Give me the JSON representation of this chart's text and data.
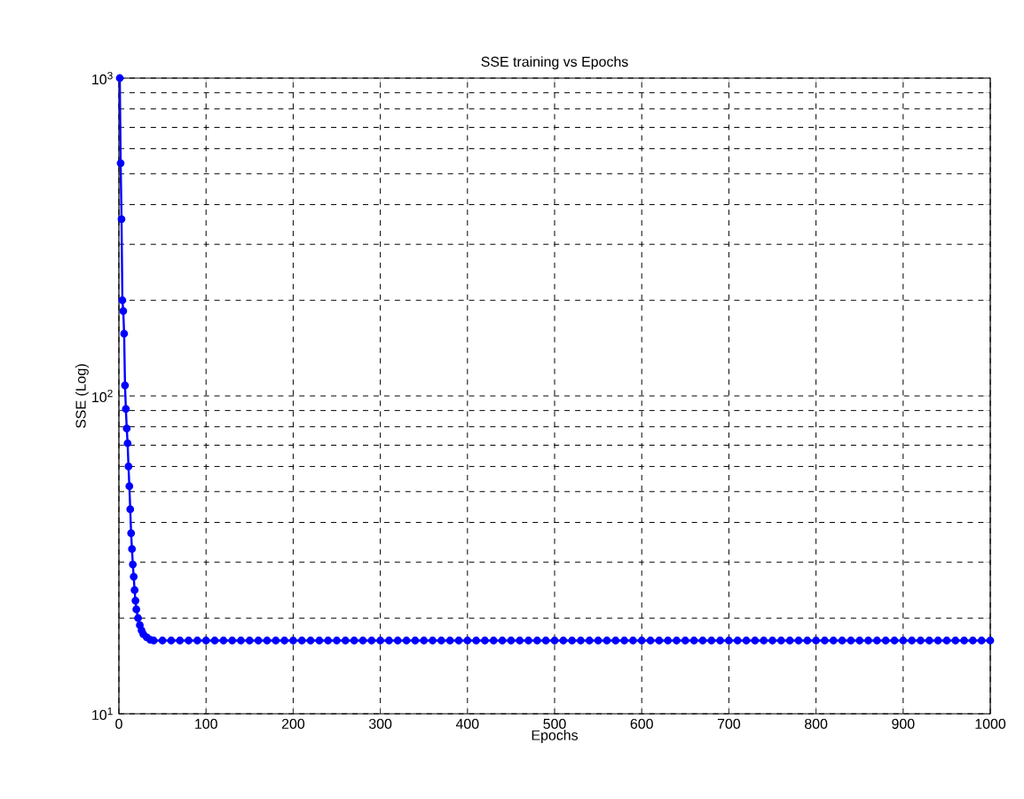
{
  "chart_data": {
    "type": "line",
    "title": "SSE training vs Epochs",
    "xlabel": "Epochs",
    "ylabel": "SSE (Log)",
    "x": [
      1,
      2,
      3,
      4,
      5,
      6,
      7,
      8,
      9,
      10,
      11,
      12,
      13,
      14,
      15,
      16,
      17,
      18,
      19,
      20,
      22,
      24,
      26,
      28,
      32,
      36,
      40,
      50,
      60,
      70,
      80,
      90,
      100,
      110,
      120,
      130,
      140,
      150,
      160,
      170,
      180,
      190,
      200,
      210,
      220,
      230,
      240,
      250,
      260,
      270,
      280,
      290,
      300,
      310,
      320,
      330,
      340,
      350,
      360,
      370,
      380,
      390,
      400,
      410,
      420,
      430,
      440,
      450,
      460,
      470,
      480,
      490,
      500,
      510,
      520,
      530,
      540,
      550,
      560,
      570,
      580,
      590,
      600,
      610,
      620,
      630,
      640,
      650,
      660,
      670,
      680,
      690,
      700,
      710,
      720,
      730,
      740,
      750,
      760,
      770,
      780,
      790,
      800,
      810,
      820,
      830,
      840,
      850,
      860,
      870,
      880,
      890,
      900,
      910,
      920,
      930,
      940,
      950,
      960,
      970,
      980,
      990,
      1000
    ],
    "series": [
      {
        "color": "#0000ff",
        "values": [
          1000,
          540,
          360,
          200,
          185,
          157,
          108,
          91,
          79,
          71,
          60,
          52,
          44,
          37,
          33,
          29.5,
          27,
          24.5,
          22.7,
          21.3,
          20,
          19,
          18.3,
          17.8,
          17.4,
          17.1,
          17,
          17,
          17,
          17,
          17,
          17,
          17,
          17,
          17,
          17,
          17,
          17,
          17,
          17,
          17,
          17,
          17,
          17,
          17,
          17,
          17,
          17,
          17,
          17,
          17,
          17,
          17,
          17,
          17,
          17,
          17,
          17,
          17,
          17,
          17,
          17,
          17,
          17,
          17,
          17,
          17,
          17,
          17,
          17,
          17,
          17,
          17,
          17,
          17,
          17,
          17,
          17,
          17,
          17,
          17,
          17,
          17,
          17,
          17,
          17,
          17,
          17,
          17,
          17,
          17,
          17,
          17,
          17,
          17,
          17,
          17,
          17,
          17,
          17,
          17,
          17,
          17,
          17,
          17,
          17,
          17,
          17,
          17,
          17,
          17,
          17,
          17,
          17,
          17,
          17,
          17,
          17,
          17,
          17,
          17,
          17,
          17
        ]
      }
    ],
    "xlim": [
      0,
      1000
    ],
    "xticks": [
      0,
      100,
      200,
      300,
      400,
      500,
      600,
      700,
      800,
      900,
      1000
    ],
    "ylim": [
      10,
      1000
    ],
    "yticks": [
      {
        "value": 10,
        "label": "10$^{1}$"
      },
      {
        "value": 100,
        "label": "10$^{2}$"
      },
      {
        "value": 1000,
        "label": "10$^{3}$"
      }
    ],
    "log": "y",
    "grid": true,
    "marker": "circle"
  }
}
